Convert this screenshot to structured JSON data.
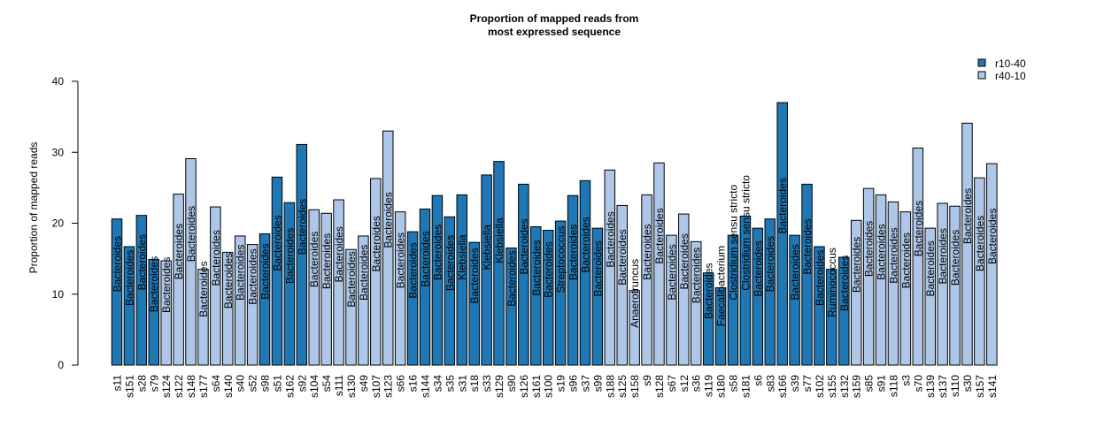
{
  "chart_data": {
    "type": "bar",
    "title": "Proportion of mapped reads from\nmost expressed sequence",
    "xlabel": "",
    "ylabel": "Proportion of mapped reads",
    "ylim": [
      0,
      40
    ],
    "yticks": [
      0,
      10,
      20,
      30,
      40
    ],
    "grid": false,
    "legend_position": "top-right",
    "legend": [
      {
        "name": "r10-40",
        "color": "#1F77B4"
      },
      {
        "name": "r40-10",
        "color": "#AEC7E8"
      }
    ],
    "bars": [
      {
        "sample": "s11",
        "group": "r10-40",
        "value": 20.6,
        "genus": "Bacteroides"
      },
      {
        "sample": "s151",
        "group": "r10-40",
        "value": 16.7,
        "genus": "Bacteroides"
      },
      {
        "sample": "s28",
        "group": "r10-40",
        "value": 21.1,
        "genus": "Bacteroides"
      },
      {
        "sample": "s79",
        "group": "r10-40",
        "value": 14.9,
        "genus": "Bacteroides"
      },
      {
        "sample": "s124",
        "group": "r40-10",
        "value": 14.7,
        "genus": "Bacteroides"
      },
      {
        "sample": "s122",
        "group": "r40-10",
        "value": 24.1,
        "genus": "Bacteroides"
      },
      {
        "sample": "s148",
        "group": "r40-10",
        "value": 29.1,
        "genus": "Bacteroides"
      },
      {
        "sample": "s177",
        "group": "r40-10",
        "value": 13.5,
        "genus": "Bacteroides"
      },
      {
        "sample": "s64",
        "group": "r40-10",
        "value": 22.3,
        "genus": "Bacteroides"
      },
      {
        "sample": "s140",
        "group": "r40-10",
        "value": 15.9,
        "genus": "Bacteroides"
      },
      {
        "sample": "s40",
        "group": "r40-10",
        "value": 18.2,
        "genus": "Bacteroides"
      },
      {
        "sample": "s52",
        "group": "r40-10",
        "value": 17.0,
        "genus": "Bacteroides"
      },
      {
        "sample": "s98",
        "group": "r10-40",
        "value": 18.5,
        "genus": "Bacteroides"
      },
      {
        "sample": "s51",
        "group": "r10-40",
        "value": 26.5,
        "genus": "Bacteroides"
      },
      {
        "sample": "s162",
        "group": "r10-40",
        "value": 22.9,
        "genus": "Bacteroides"
      },
      {
        "sample": "s92",
        "group": "r10-40",
        "value": 31.1,
        "genus": "Bacteroides"
      },
      {
        "sample": "s104",
        "group": "r40-10",
        "value": 21.9,
        "genus": "Bacteroides"
      },
      {
        "sample": "s54",
        "group": "r40-10",
        "value": 21.4,
        "genus": "Bacteroides"
      },
      {
        "sample": "s111",
        "group": "r40-10",
        "value": 23.3,
        "genus": "Bacteroides"
      },
      {
        "sample": "s130",
        "group": "r40-10",
        "value": 16.3,
        "genus": "Bacteroides"
      },
      {
        "sample": "s49",
        "group": "r40-10",
        "value": 18.2,
        "genus": "Bacteroides"
      },
      {
        "sample": "s107",
        "group": "r40-10",
        "value": 26.3,
        "genus": "Bacteroides"
      },
      {
        "sample": "s123",
        "group": "r40-10",
        "value": 33.0,
        "genus": "Bacteroides"
      },
      {
        "sample": "s66",
        "group": "r40-10",
        "value": 21.6,
        "genus": "Bacteroides"
      },
      {
        "sample": "s16",
        "group": "r10-40",
        "value": 18.8,
        "genus": "Bacteroides"
      },
      {
        "sample": "s144",
        "group": "r10-40",
        "value": 22.0,
        "genus": "Bacteroides"
      },
      {
        "sample": "s34",
        "group": "r10-40",
        "value": 23.9,
        "genus": "Bacteroides"
      },
      {
        "sample": "s35",
        "group": "r10-40",
        "value": 20.9,
        "genus": "Bacteroides"
      },
      {
        "sample": "s31",
        "group": "r10-40",
        "value": 24.0,
        "genus": "Klebsiella"
      },
      {
        "sample": "s18",
        "group": "r10-40",
        "value": 17.3,
        "genus": "Bacteroides"
      },
      {
        "sample": "s33",
        "group": "r10-40",
        "value": 26.8,
        "genus": "Klebsiella"
      },
      {
        "sample": "s129",
        "group": "r10-40",
        "value": 28.7,
        "genus": "Klebsiella"
      },
      {
        "sample": "s90",
        "group": "r10-40",
        "value": 16.5,
        "genus": "Bacteroides"
      },
      {
        "sample": "s126",
        "group": "r10-40",
        "value": 25.5,
        "genus": "Bacteroides"
      },
      {
        "sample": "s161",
        "group": "r10-40",
        "value": 19.5,
        "genus": "Bacteroides"
      },
      {
        "sample": "s100",
        "group": "r10-40",
        "value": 19.0,
        "genus": "Bacteroides"
      },
      {
        "sample": "s19",
        "group": "r10-40",
        "value": 20.3,
        "genus": "Streptococcus"
      },
      {
        "sample": "s96",
        "group": "r10-40",
        "value": 23.9,
        "genus": "Bacteroides"
      },
      {
        "sample": "s37",
        "group": "r10-40",
        "value": 26.0,
        "genus": "Bacteroides"
      },
      {
        "sample": "s99",
        "group": "r10-40",
        "value": 19.3,
        "genus": "Bacteroides"
      },
      {
        "sample": "s188",
        "group": "r40-10",
        "value": 27.5,
        "genus": "Bacteroides"
      },
      {
        "sample": "s125",
        "group": "r40-10",
        "value": 22.5,
        "genus": "Bacteroides"
      },
      {
        "sample": "s158",
        "group": "r40-10",
        "value": 10.5,
        "genus": "Anaerotruncus"
      },
      {
        "sample": "s9",
        "group": "r40-10",
        "value": 24.0,
        "genus": "Bacteroides"
      },
      {
        "sample": "s128",
        "group": "r40-10",
        "value": 28.5,
        "genus": "Bacteroides"
      },
      {
        "sample": "s67",
        "group": "r40-10",
        "value": 18.3,
        "genus": "Bacteroides"
      },
      {
        "sample": "s12",
        "group": "r40-10",
        "value": 21.3,
        "genus": "Bacteroides"
      },
      {
        "sample": "s36",
        "group": "r40-10",
        "value": 17.4,
        "genus": "Bacteroides"
      },
      {
        "sample": "s119",
        "group": "r10-40",
        "value": 13.0,
        "genus": "Bacteroides"
      },
      {
        "sample": "s180",
        "group": "r10-40",
        "value": 10.9,
        "genus": "Faecalibacterium"
      },
      {
        "sample": "s58",
        "group": "r10-40",
        "value": 18.3,
        "genus": "Clostridium sensu stricto"
      },
      {
        "sample": "s181",
        "group": "r10-40",
        "value": 21.0,
        "genus": "Clostridium sensu stricto"
      },
      {
        "sample": "s6",
        "group": "r10-40",
        "value": 19.3,
        "genus": "Bacteroides"
      },
      {
        "sample": "s83",
        "group": "r10-40",
        "value": 20.6,
        "genus": "Bacteroides"
      },
      {
        "sample": "s166",
        "group": "r10-40",
        "value": 37.0,
        "genus": "Bacteroides"
      },
      {
        "sample": "s39",
        "group": "r10-40",
        "value": 18.3,
        "genus": "Bacteroides"
      },
      {
        "sample": "s77",
        "group": "r10-40",
        "value": 25.5,
        "genus": "Bacteroides"
      },
      {
        "sample": "s102",
        "group": "r10-40",
        "value": 16.7,
        "genus": "Bacteroides"
      },
      {
        "sample": "s155",
        "group": "r10-40",
        "value": 13.5,
        "genus": "Ruminococcus"
      },
      {
        "sample": "s132",
        "group": "r10-40",
        "value": 15.2,
        "genus": "Bacteroides"
      },
      {
        "sample": "s159",
        "group": "r40-10",
        "value": 20.4,
        "genus": "Bacteroides"
      },
      {
        "sample": "s85",
        "group": "r40-10",
        "value": 24.9,
        "genus": "Bacteroides"
      },
      {
        "sample": "s91",
        "group": "r40-10",
        "value": 24.0,
        "genus": "Bacteroides"
      },
      {
        "sample": "s118",
        "group": "r40-10",
        "value": 23.0,
        "genus": "Bacteroides"
      },
      {
        "sample": "s3",
        "group": "r40-10",
        "value": 21.6,
        "genus": "Bacteroides"
      },
      {
        "sample": "s70",
        "group": "r40-10",
        "value": 30.6,
        "genus": "Bacteroides"
      },
      {
        "sample": "s139",
        "group": "r40-10",
        "value": 19.3,
        "genus": "Bacteroides"
      },
      {
        "sample": "s137",
        "group": "r40-10",
        "value": 22.8,
        "genus": "Bacteroides"
      },
      {
        "sample": "s110",
        "group": "r40-10",
        "value": 22.4,
        "genus": "Bacteroides"
      },
      {
        "sample": "s30",
        "group": "r40-10",
        "value": 34.1,
        "genus": "Bacteroides"
      },
      {
        "sample": "s157",
        "group": "r40-10",
        "value": 26.4,
        "genus": "Bacteroides"
      },
      {
        "sample": "s141",
        "group": "r40-10",
        "value": 28.4,
        "genus": "Bacteroides"
      }
    ]
  }
}
